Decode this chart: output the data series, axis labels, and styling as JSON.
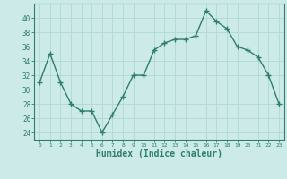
{
  "x": [
    0,
    1,
    2,
    3,
    4,
    5,
    6,
    7,
    8,
    9,
    10,
    11,
    12,
    13,
    14,
    15,
    16,
    17,
    18,
    19,
    20,
    21,
    22,
    23
  ],
  "y": [
    31,
    35,
    31,
    28,
    27,
    27,
    24,
    26.5,
    29,
    32,
    32,
    35.5,
    36.5,
    37,
    37,
    37.5,
    41,
    39.5,
    38.5,
    36,
    35.5,
    34.5,
    32,
    28
  ],
  "line_color": "#2e7d6e",
  "marker": "+",
  "marker_size": 4,
  "bg_color": "#cceae7",
  "grid_color": "#b0d8d4",
  "xlabel": "Humidex (Indice chaleur)",
  "xlabel_fontsize": 7,
  "tick_color": "#2e7d6e",
  "tick_label_color": "#2e7d6e",
  "ylim": [
    23,
    42
  ],
  "xlim": [
    -0.5,
    23.5
  ],
  "yticks": [
    24,
    26,
    28,
    30,
    32,
    34,
    36,
    38,
    40
  ],
  "xticks": [
    0,
    1,
    2,
    3,
    4,
    5,
    6,
    7,
    8,
    9,
    10,
    11,
    12,
    13,
    14,
    15,
    16,
    17,
    18,
    19,
    20,
    21,
    22,
    23
  ],
  "xtick_labels": [
    "0",
    "1",
    "2",
    "3",
    "4",
    "5",
    "6",
    "7",
    "8",
    "9",
    "10",
    "11",
    "12",
    "13",
    "14",
    "15",
    "16",
    "17",
    "18",
    "19",
    "20",
    "21",
    "22",
    "23"
  ],
  "line_width": 1.0
}
